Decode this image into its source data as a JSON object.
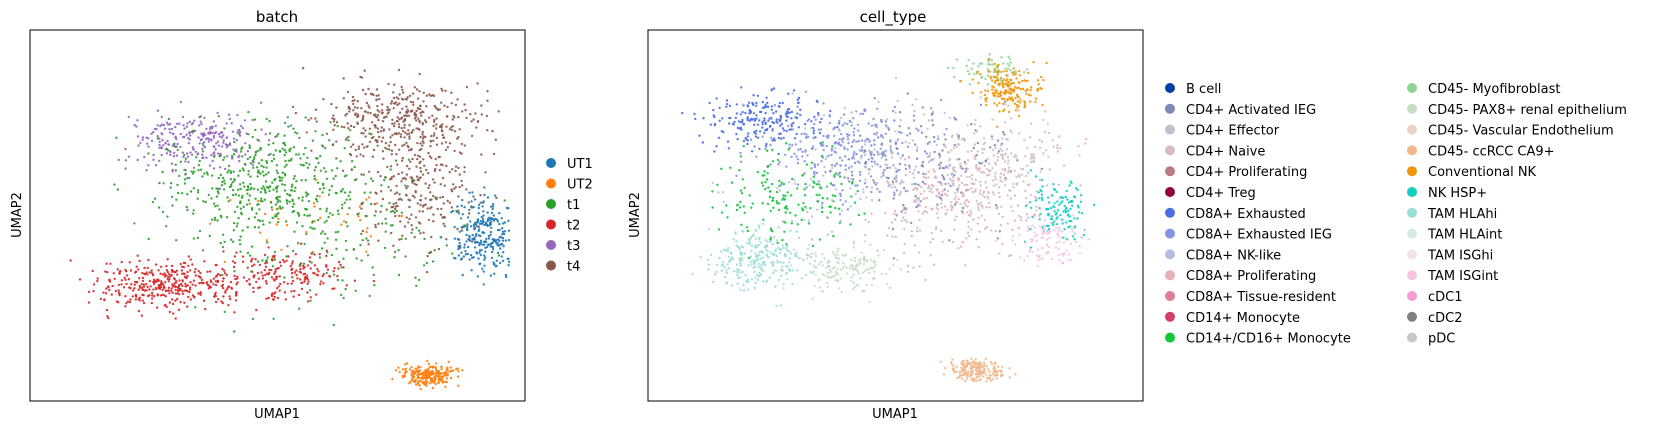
{
  "chart_data": [
    {
      "type": "scatter",
      "title": "batch",
      "xlabel": "UMAP1",
      "ylabel": "UMAP2",
      "legend_position": "right",
      "legend": [
        {
          "label": "UT1",
          "color": "#1f77b4"
        },
        {
          "label": "UT2",
          "color": "#ff7f0e"
        },
        {
          "label": "t1",
          "color": "#2ca02c"
        },
        {
          "label": "t2",
          "color": "#d62728"
        },
        {
          "label": "t3",
          "color": "#9467bd"
        },
        {
          "label": "t4",
          "color": "#8c564b"
        }
      ]
    },
    {
      "type": "scatter",
      "title": "cell_type",
      "xlabel": "UMAP1",
      "ylabel": "UMAP2",
      "legend_position": "right",
      "legend": [
        {
          "label": "B cell",
          "color": "#023fa5"
        },
        {
          "label": "CD4+ Activated IEG",
          "color": "#7d87b9"
        },
        {
          "label": "CD4+ Effector",
          "color": "#bec1d4"
        },
        {
          "label": "CD4+ Naive",
          "color": "#d6bcc0"
        },
        {
          "label": "CD4+ Proliferating",
          "color": "#bb7784"
        },
        {
          "label": "CD4+ Treg",
          "color": "#8e063b"
        },
        {
          "label": "CD8A+ Exhausted",
          "color": "#4a6fe3"
        },
        {
          "label": "CD8A+ Exhausted IEG",
          "color": "#8595e1"
        },
        {
          "label": "CD8A+ NK-like",
          "color": "#b5bbe3"
        },
        {
          "label": "CD8A+ Proliferating",
          "color": "#e6afb9"
        },
        {
          "label": "CD8A+ Tissue-resident",
          "color": "#e07b91"
        },
        {
          "label": "CD14+ Monocyte",
          "color": "#d33f6a"
        },
        {
          "label": "CD14+/CD16+ Monocyte",
          "color": "#11c638"
        },
        {
          "label": "CD45- Myofibroblast",
          "color": "#8dd593"
        },
        {
          "label": "CD45- PAX8+ renal epithelium",
          "color": "#c6dec7"
        },
        {
          "label": "CD45- Vascular Endothelium",
          "color": "#ead3c6"
        },
        {
          "label": "CD45- ccRCC CA9+",
          "color": "#f0b98d"
        },
        {
          "label": "Conventional NK",
          "color": "#ef9708"
        },
        {
          "label": "NK HSP+",
          "color": "#0fcfc0"
        },
        {
          "label": "TAM HLAhi",
          "color": "#9cded6"
        },
        {
          "label": "TAM HLAint",
          "color": "#d5eae7"
        },
        {
          "label": "TAM ISGhi",
          "color": "#f3e1eb"
        },
        {
          "label": "TAM ISGint",
          "color": "#f6c4e1"
        },
        {
          "label": "cDC1",
          "color": "#f79cd4"
        },
        {
          "label": "cDC2",
          "color": "#7f7f7f"
        },
        {
          "label": "pDC",
          "color": "#c7c7c7"
        }
      ]
    }
  ]
}
